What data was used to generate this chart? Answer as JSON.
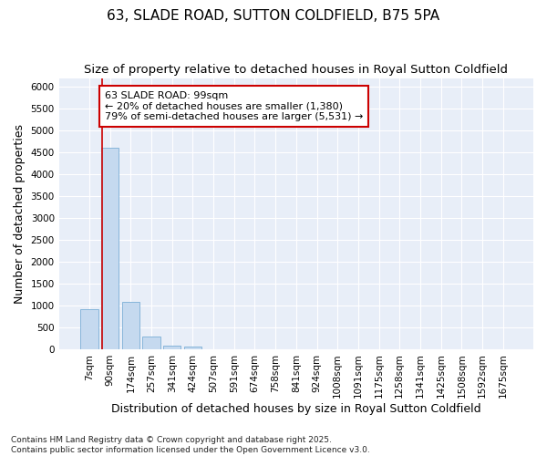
{
  "title": "63, SLADE ROAD, SUTTON COLDFIELD, B75 5PA",
  "subtitle": "Size of property relative to detached houses in Royal Sutton Coldfield",
  "xlabel": "Distribution of detached houses by size in Royal Sutton Coldfield",
  "ylabel": "Number of detached properties",
  "categories": [
    "7sqm",
    "90sqm",
    "174sqm",
    "257sqm",
    "341sqm",
    "424sqm",
    "507sqm",
    "591sqm",
    "674sqm",
    "758sqm",
    "841sqm",
    "924sqm",
    "1008sqm",
    "1091sqm",
    "1175sqm",
    "1258sqm",
    "1341sqm",
    "1425sqm",
    "1508sqm",
    "1592sqm",
    "1675sqm"
  ],
  "values": [
    920,
    4610,
    1080,
    290,
    80,
    60,
    0,
    0,
    0,
    0,
    0,
    0,
    0,
    0,
    0,
    0,
    0,
    0,
    0,
    0,
    0
  ],
  "bar_color": "#c5d9ef",
  "bar_edge_color": "#7aaed6",
  "vline_x_index": 0.6,
  "vline_color": "#cc0000",
  "annotation_text": "63 SLADE ROAD: 99sqm\n← 20% of detached houses are smaller (1,380)\n79% of semi-detached houses are larger (5,531) →",
  "annotation_box_facecolor": "#ffffff",
  "annotation_box_edgecolor": "#cc0000",
  "plot_bg_color": "#e8eef8",
  "fig_bg_color": "#ffffff",
  "grid_color": "#ffffff",
  "ylim": [
    0,
    6200
  ],
  "yticks": [
    0,
    500,
    1000,
    1500,
    2000,
    2500,
    3000,
    3500,
    4000,
    4500,
    5000,
    5500,
    6000
  ],
  "footer": "Contains HM Land Registry data © Crown copyright and database right 2025.\nContains public sector information licensed under the Open Government Licence v3.0.",
  "title_fontsize": 11,
  "subtitle_fontsize": 9.5,
  "xlabel_fontsize": 9,
  "ylabel_fontsize": 9,
  "tick_fontsize": 7.5,
  "annotation_fontsize": 8,
  "footer_fontsize": 6.5
}
